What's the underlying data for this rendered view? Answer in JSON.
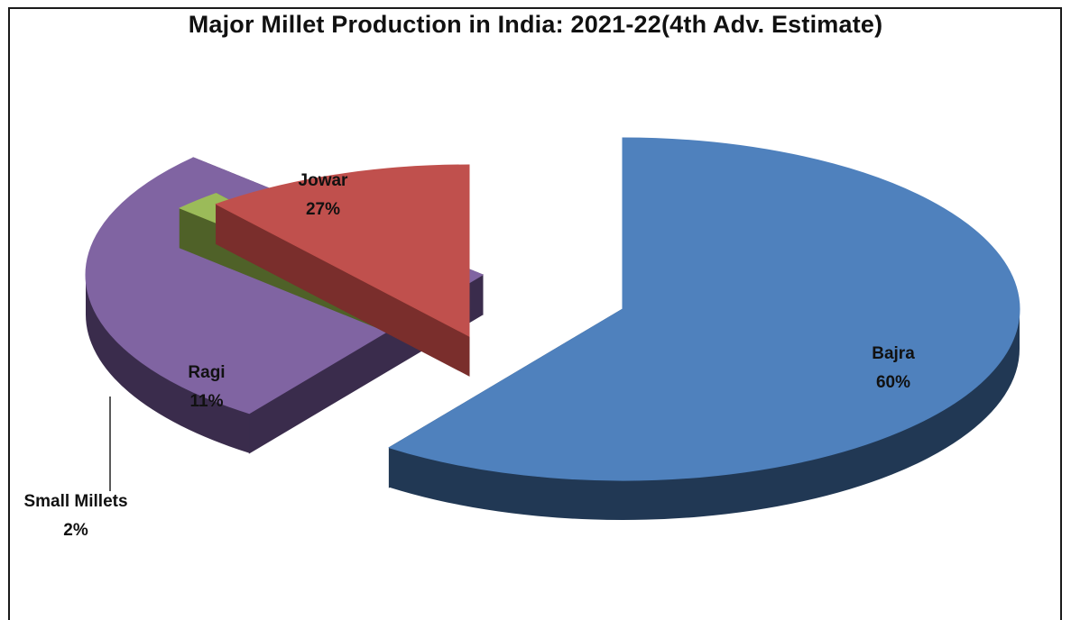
{
  "chart_data": {
    "type": "pie",
    "title": "Major Millet Production in India: 2021-22(4th Adv. Estimate)",
    "slices": [
      {
        "label": "Bajra",
        "value": 60,
        "value_label": "60%",
        "color": "#4F81BD",
        "dark": "#213854"
      },
      {
        "label": "Jowar",
        "value": 27,
        "value_label": "27%",
        "color": "#8064A2",
        "dark": "#3A2C4C"
      },
      {
        "label": "Small Millets",
        "value": 2,
        "value_label": "2%",
        "color": "#9BBB59",
        "dark": "#4F6128"
      },
      {
        "label": "Ragi",
        "value": 11,
        "value_label": "11%",
        "color": "#C0504D",
        "dark": "#7A2E2C"
      }
    ],
    "legend": "none",
    "style": "3d-exploded"
  }
}
